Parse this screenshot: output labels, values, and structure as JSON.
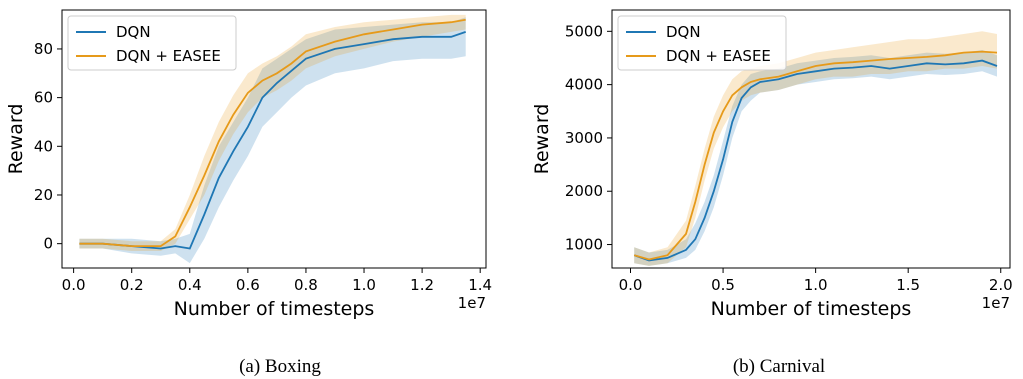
{
  "chart_data": [
    {
      "type": "line",
      "caption": "(a) Boxing",
      "xlabel": "Number of timesteps",
      "ylabel": "Reward",
      "x_multiplier_label": "1e7",
      "xlim": [
        -0.04,
        1.42
      ],
      "ylim": [
        -10,
        96
      ],
      "xticks": [
        0.0,
        0.2,
        0.4,
        0.6,
        0.8,
        1.0,
        1.2,
        1.4
      ],
      "xtick_labels": [
        "0.0",
        "0.2",
        "0.4",
        "0.6",
        "0.8",
        "1.0",
        "1.2",
        "1.4"
      ],
      "yticks": [
        0,
        20,
        40,
        60,
        80
      ],
      "ytick_labels": [
        "0",
        "20",
        "40",
        "60",
        "80"
      ],
      "grid": false,
      "legend_position": "top-left",
      "series": [
        {
          "name": "DQN",
          "color": "#1f77b4",
          "x": [
            0.02,
            0.1,
            0.2,
            0.3,
            0.35,
            0.4,
            0.45,
            0.5,
            0.55,
            0.6,
            0.65,
            0.7,
            0.75,
            0.8,
            0.9,
            1.0,
            1.1,
            1.2,
            1.3,
            1.35
          ],
          "values": [
            0,
            0,
            -1,
            -2,
            -1,
            -2,
            12,
            27,
            38,
            48,
            60,
            66,
            71,
            76,
            80,
            82,
            84,
            85,
            85,
            87
          ],
          "lower": [
            -2,
            -2,
            -4,
            -5,
            -4,
            -8,
            2,
            15,
            26,
            36,
            48,
            54,
            60,
            65,
            70,
            72,
            75,
            76,
            76,
            77
          ],
          "upper": [
            2,
            2,
            2,
            1,
            2,
            4,
            24,
            40,
            50,
            60,
            72,
            76,
            80,
            84,
            88,
            89,
            90,
            91,
            91,
            93
          ]
        },
        {
          "name": "DQN + EASEE",
          "color": "#e69a1a",
          "x": [
            0.02,
            0.1,
            0.2,
            0.3,
            0.35,
            0.4,
            0.45,
            0.5,
            0.55,
            0.6,
            0.65,
            0.7,
            0.75,
            0.8,
            0.9,
            1.0,
            1.1,
            1.2,
            1.3,
            1.35
          ],
          "values": [
            0,
            0,
            -1,
            -1,
            3,
            15,
            28,
            42,
            53,
            62,
            67,
            70,
            74,
            79,
            83,
            86,
            88,
            90,
            91,
            92
          ],
          "lower": [
            -2,
            -2,
            -3,
            -3,
            0,
            10,
            20,
            34,
            45,
            54,
            60,
            63,
            67,
            72,
            77,
            80,
            83,
            85,
            87,
            88
          ],
          "upper": [
            2,
            2,
            1,
            1,
            6,
            20,
            36,
            50,
            61,
            70,
            74,
            77,
            81,
            86,
            89,
            91,
            92,
            93,
            94,
            94
          ]
        }
      ]
    },
    {
      "type": "line",
      "caption": "(b) Carnival",
      "xlabel": "Number of timesteps",
      "ylabel": "Reward",
      "x_multiplier_label": "1e7",
      "xlim": [
        -0.1,
        2.05
      ],
      "ylim": [
        560,
        5400
      ],
      "xticks": [
        0.0,
        0.5,
        1.0,
        1.5,
        2.0
      ],
      "xtick_labels": [
        "0.0",
        "0.5",
        "1.0",
        "1.5",
        "2.0"
      ],
      "yticks": [
        1000,
        2000,
        3000,
        4000,
        5000
      ],
      "ytick_labels": [
        "1000",
        "2000",
        "3000",
        "4000",
        "5000"
      ],
      "grid": false,
      "legend_position": "top-left",
      "series": [
        {
          "name": "DQN",
          "color": "#1f77b4",
          "x": [
            0.02,
            0.1,
            0.2,
            0.3,
            0.35,
            0.4,
            0.45,
            0.5,
            0.55,
            0.6,
            0.65,
            0.7,
            0.8,
            0.9,
            1.0,
            1.1,
            1.2,
            1.3,
            1.4,
            1.5,
            1.6,
            1.7,
            1.8,
            1.9,
            1.98
          ],
          "values": [
            800,
            700,
            750,
            900,
            1100,
            1500,
            2000,
            2600,
            3300,
            3750,
            3950,
            4050,
            4100,
            4200,
            4250,
            4300,
            4320,
            4350,
            4300,
            4350,
            4400,
            4380,
            4400,
            4450,
            4350
          ],
          "lower": [
            650,
            600,
            650,
            750,
            900,
            1250,
            1700,
            2300,
            3000,
            3500,
            3700,
            3850,
            3900,
            4000,
            4050,
            4100,
            4120,
            4150,
            4100,
            4150,
            4200,
            4180,
            4200,
            4250,
            4150
          ],
          "upper": [
            950,
            850,
            900,
            1100,
            1400,
            1800,
            2300,
            2950,
            3600,
            4000,
            4200,
            4250,
            4300,
            4400,
            4450,
            4500,
            4520,
            4550,
            4500,
            4550,
            4600,
            4580,
            4600,
            4650,
            4550
          ]
        },
        {
          "name": "DQN + EASEE",
          "color": "#e69a1a",
          "x": [
            0.02,
            0.1,
            0.2,
            0.3,
            0.35,
            0.4,
            0.45,
            0.5,
            0.55,
            0.6,
            0.65,
            0.7,
            0.8,
            0.9,
            1.0,
            1.1,
            1.2,
            1.3,
            1.4,
            1.5,
            1.6,
            1.7,
            1.8,
            1.9,
            1.98
          ],
          "values": [
            800,
            720,
            800,
            1200,
            1800,
            2500,
            3100,
            3500,
            3800,
            3950,
            4050,
            4100,
            4150,
            4250,
            4350,
            4400,
            4420,
            4450,
            4480,
            4500,
            4520,
            4550,
            4600,
            4620,
            4600
          ],
          "lower": [
            650,
            600,
            650,
            950,
            1500,
            2200,
            2800,
            3200,
            3500,
            3700,
            3800,
            3850,
            3900,
            4000,
            4100,
            4150,
            4150,
            4200,
            4200,
            4250,
            4250,
            4300,
            4300,
            4350,
            4300
          ],
          "upper": [
            950,
            850,
            950,
            1450,
            2100,
            2800,
            3400,
            3800,
            4100,
            4250,
            4300,
            4350,
            4400,
            4500,
            4600,
            4650,
            4700,
            4750,
            4800,
            4850,
            4850,
            4900,
            4950,
            5000,
            4950
          ]
        }
      ]
    }
  ]
}
